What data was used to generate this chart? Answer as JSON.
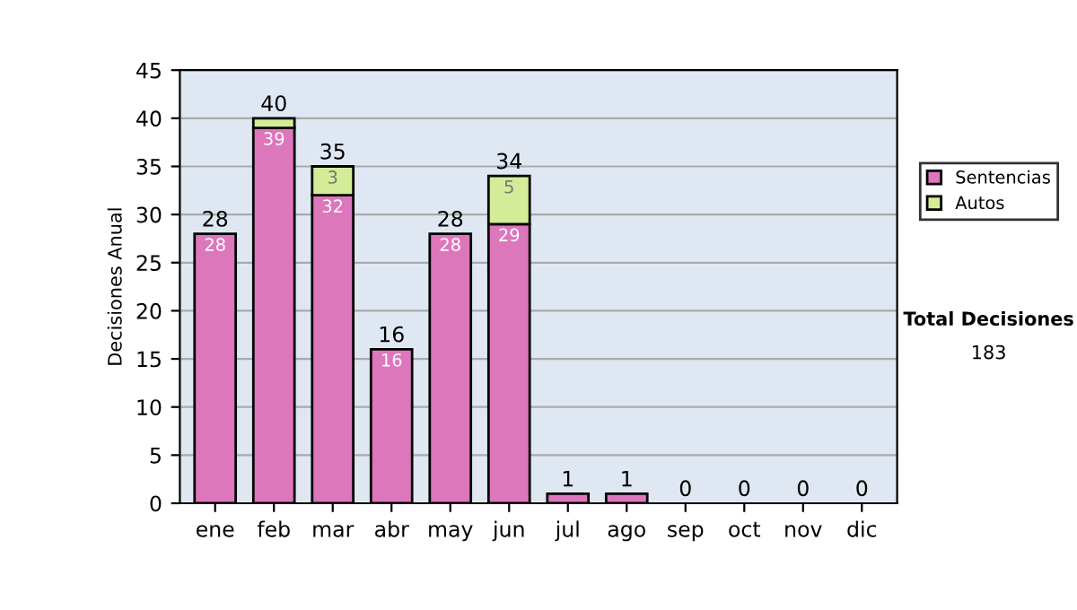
{
  "chart_data": {
    "type": "bar",
    "stacked": true,
    "categories": [
      "ene",
      "feb",
      "mar",
      "abr",
      "may",
      "jun",
      "jul",
      "ago",
      "sep",
      "oct",
      "nov",
      "dic"
    ],
    "ylabel": "Decisiones Anual",
    "series": [
      {
        "name": "Sentencias",
        "color": "#dd77bb",
        "values": [
          28,
          39,
          32,
          16,
          28,
          29,
          1,
          1,
          0,
          0,
          0,
          0
        ],
        "value_labels": [
          "28",
          "39",
          "32",
          "16",
          "28",
          "29",
          null,
          null,
          null,
          null,
          null,
          null
        ]
      },
      {
        "name": "Autos",
        "color": "#d4ec98",
        "values": [
          0,
          1,
          3,
          0,
          0,
          5,
          0,
          0,
          0,
          0,
          0,
          0
        ],
        "value_labels": [
          null,
          null,
          "3",
          null,
          null,
          "5",
          null,
          null,
          null,
          null,
          null,
          null
        ]
      }
    ],
    "totals": [
      "28",
      "40",
      "35",
      "16",
      "28",
      "34",
      "1",
      "1",
      "0",
      "0",
      "0",
      "0"
    ],
    "ylim": [
      0,
      45
    ],
    "yticks": [
      0,
      5,
      10,
      15,
      20,
      25,
      30,
      35,
      40,
      45
    ],
    "grid": "y",
    "legend": "right",
    "annotations": [
      "Total Decisiones",
      "183"
    ]
  }
}
